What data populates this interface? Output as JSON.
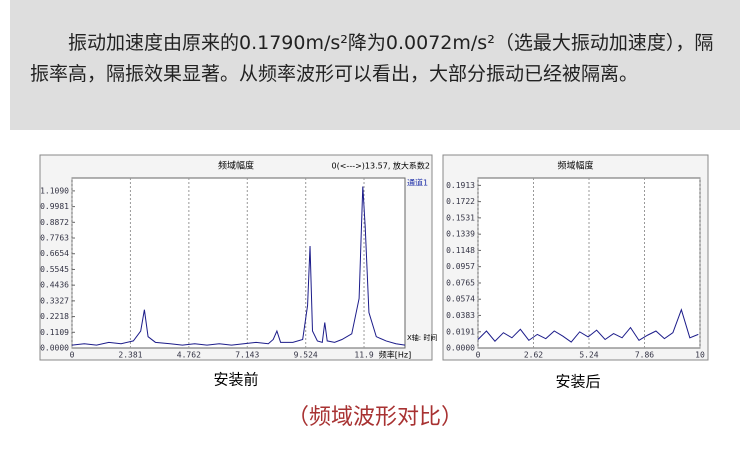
{
  "intro": "振动加速度由原来的0.1790m/s²降为0.0072m/s²（选最大振动加速度），隔振率高，隔振效果显著。从频率波形可以看出，大部分振动已经被隔离。",
  "chart_data": [
    {
      "type": "line",
      "title": "频域幅度",
      "annotation": "0(<--->)13.57, 放大系数2",
      "xlabel": "频率[Hz]",
      "xlabel_note": "X轴: 时间",
      "x": [
        0,
        0.5,
        1,
        1.5,
        2,
        2.5,
        2.8,
        2.95,
        3.1,
        3.4,
        4,
        4.5,
        5,
        5.5,
        6,
        6.5,
        7,
        7.5,
        8,
        8.2,
        8.35,
        8.5,
        9,
        9.4,
        9.6,
        9.7,
        9.8,
        10,
        10.2,
        10.3,
        10.4,
        10.7,
        11,
        11.4,
        11.7,
        11.85,
        11.95,
        12.1,
        12.4,
        12.8,
        13.2,
        13.57
      ],
      "series": [
        {
          "name": "通道1",
          "color": "#1c1c8a",
          "values": [
            0.02,
            0.03,
            0.02,
            0.04,
            0.03,
            0.05,
            0.12,
            0.27,
            0.08,
            0.04,
            0.03,
            0.02,
            0.03,
            0.02,
            0.03,
            0.02,
            0.03,
            0.04,
            0.03,
            0.06,
            0.12,
            0.04,
            0.04,
            0.06,
            0.3,
            0.72,
            0.12,
            0.05,
            0.04,
            0.18,
            0.05,
            0.04,
            0.06,
            0.1,
            0.35,
            1.14,
            0.85,
            0.25,
            0.08,
            0.05,
            0.03,
            0.02
          ]
        }
      ],
      "xlim": [
        0,
        13.57
      ],
      "xticks": [
        0,
        2.381,
        4.762,
        7.143,
        9.524,
        11.9
      ],
      "ylim": [
        0,
        1.2
      ],
      "yticks": [
        {
          "value": 0,
          "label": "0.0000"
        },
        0.1109,
        0.2218,
        0.3327,
        0.4436,
        0.5545,
        0.6654,
        0.7763,
        0.8872,
        0.9981,
        {
          "value": 1.109,
          "label": "1.1090"
        }
      ],
      "grid": "x"
    },
    {
      "type": "line",
      "title": "频域幅度",
      "x": [
        0,
        0.4,
        0.8,
        1.2,
        1.6,
        2,
        2.4,
        2.8,
        3.2,
        3.6,
        4,
        4.4,
        4.8,
        5.2,
        5.6,
        6,
        6.4,
        6.8,
        7.2,
        7.6,
        8,
        8.4,
        8.8,
        9.2,
        9.6,
        10,
        10.4
      ],
      "values": [
        0.01,
        0.02,
        0.008,
        0.018,
        0.012,
        0.022,
        0.009,
        0.016,
        0.011,
        0.02,
        0.014,
        0.007,
        0.019,
        0.013,
        0.021,
        0.01,
        0.017,
        0.012,
        0.024,
        0.009,
        0.015,
        0.02,
        0.011,
        0.018,
        0.045,
        0.012,
        0.016
      ],
      "color": "#1c1c8a",
      "xlim": [
        0,
        10.48
      ],
      "xticks": [
        0,
        2.62,
        5.24,
        7.86,
        {
          "value": 10.48,
          "label": "10"
        }
      ],
      "ylim": [
        0,
        0.2
      ],
      "yticks": [
        {
          "value": 0,
          "label": "0.0000"
        },
        0.0191,
        0.0383,
        0.0574,
        0.0765,
        0.0957,
        0.1148,
        0.1339,
        0.1531,
        0.1722,
        0.1913
      ],
      "grid": "x"
    }
  ],
  "captions": [
    "安装前",
    "安装后"
  ],
  "footer": "（频域波形对比）"
}
